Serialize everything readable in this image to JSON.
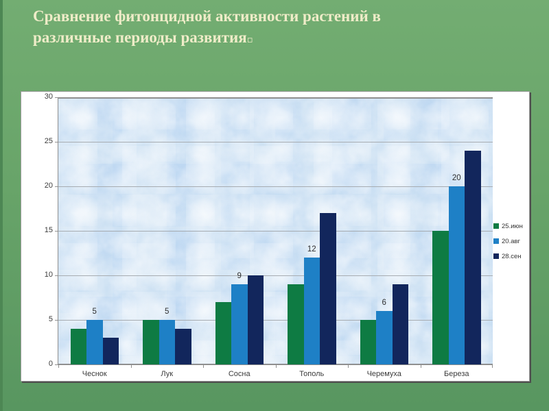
{
  "slide": {
    "title_line1": "Сравнение фитонцидной активности растений в",
    "title_line2": "различные периоды развития",
    "title_suffix": "▫"
  },
  "chart_data": {
    "type": "bar",
    "title": "Сравнение фитонцидной активности растений в различные периоды развития",
    "xlabel": "",
    "ylabel": "",
    "categories": [
      "Чеснок",
      "Лук",
      "Сосна",
      "Тополь",
      "Черемуха",
      "Береза"
    ],
    "series": [
      {
        "name": "25.июн",
        "color": "#0e7b43",
        "values": [
          4,
          5,
          7,
          9,
          5,
          15
        ]
      },
      {
        "name": "20.авг",
        "color": "#1e80c6",
        "values": [
          5,
          5,
          9,
          12,
          6,
          20
        ]
      },
      {
        "name": "28.сен",
        "color": "#12265c",
        "values": [
          3,
          4,
          10,
          17,
          9,
          24
        ]
      }
    ],
    "data_labels_series_index": 1,
    "data_labels": [
      "5",
      "5",
      "9",
      "12",
      "6",
      "20"
    ],
    "ylim": [
      0,
      30
    ],
    "yticks": [
      0,
      5,
      10,
      15,
      20,
      25,
      30
    ],
    "grid": true,
    "legend_position": "right",
    "plot_background": "#cde1f3",
    "gridline_color": "#a7acb1"
  }
}
